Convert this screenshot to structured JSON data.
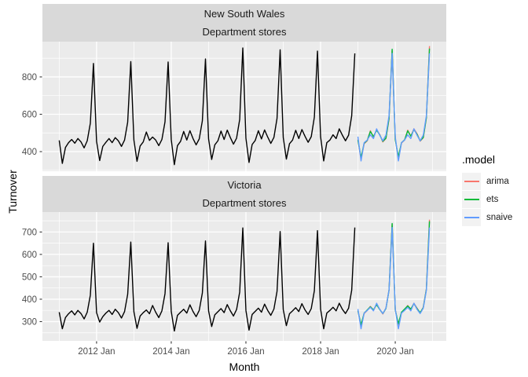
{
  "y_axis": {
    "title": "Turnover"
  },
  "x_axis": {
    "title": "Month",
    "index_unit": "month (0 = 2011 Jan)",
    "tick_indices": [
      12,
      36,
      60,
      84,
      108
    ],
    "tick_labels": [
      "2012 Jan",
      "2014 Jan",
      "2016 Jan",
      "2018 Jan",
      "2020 Jan"
    ],
    "minor_tick_indices": [
      0,
      24,
      48,
      72,
      96,
      120
    ]
  },
  "legend": {
    "title": ".model",
    "items": [
      {
        "label": "arima",
        "color": "#F8766D"
      },
      {
        "label": "ets",
        "color": "#00BA38"
      },
      {
        "label": "snaive",
        "color": "#619CFF"
      }
    ]
  },
  "colors": {
    "panel_bg": "#EBEBEB",
    "strip_bg": "#D9D9D9",
    "grid": "#FFFFFF",
    "tick": "#333333",
    "tick_label": "#4D4D4D",
    "strip_text": "#1A1A1A",
    "legend_key_bg": "#F2F2F2",
    "historical_line": "#000000"
  },
  "chart_data": [
    {
      "type": "line",
      "facet_state": "New South Wales",
      "facet_industry": "Department stores",
      "yticks": [
        400,
        600,
        800
      ],
      "yticks_minor": [
        300,
        500,
        700,
        900
      ],
      "ylim": [
        295,
        989
      ],
      "x_index_lim": [
        -5.4,
        124.4
      ],
      "series": [
        {
          "name": "historical",
          "color": "#000000",
          "start_index": 0,
          "values": [
            460,
            337,
            422,
            448,
            465,
            445,
            470,
            452,
            420,
            458,
            552,
            872,
            455,
            352,
            428,
            450,
            470,
            448,
            475,
            458,
            428,
            462,
            558,
            882,
            462,
            348,
            430,
            452,
            505,
            460,
            478,
            462,
            432,
            465,
            560,
            880,
            465,
            330,
            432,
            455,
            508,
            462,
            512,
            470,
            436,
            468,
            565,
            896,
            468,
            358,
            436,
            458,
            510,
            465,
            515,
            475,
            440,
            472,
            572,
            955,
            472,
            342,
            438,
            460,
            512,
            468,
            516,
            478,
            444,
            476,
            578,
            945,
            476,
            360,
            442,
            462,
            514,
            470,
            518,
            482,
            450,
            480,
            585,
            938,
            480,
            350,
            448,
            462,
            490,
            470,
            522,
            488,
            458,
            488,
            592,
            926
          ]
        },
        {
          "name": "arima",
          "color": "#F8766D",
          "start_index": 96,
          "values": [
            465,
            358,
            442,
            458,
            512,
            478,
            518,
            492,
            452,
            470,
            575,
            942,
            468,
            362,
            446,
            462,
            515,
            482,
            522,
            496,
            456,
            474,
            580,
            965
          ]
        },
        {
          "name": "ets",
          "color": "#00BA38",
          "start_index": 96,
          "values": [
            462,
            368,
            445,
            460,
            508,
            480,
            515,
            490,
            455,
            472,
            578,
            948,
            465,
            372,
            448,
            463,
            511,
            483,
            518,
            493,
            458,
            476,
            582,
            952
          ]
        },
        {
          "name": "snaive",
          "color": "#619CFF",
          "start_index": 96,
          "values": [
            480,
            350,
            448,
            462,
            490,
            470,
            522,
            488,
            458,
            488,
            592,
            926,
            480,
            350,
            448,
            462,
            490,
            470,
            522,
            488,
            458,
            488,
            592,
            926
          ]
        }
      ]
    },
    {
      "type": "line",
      "facet_state": "Victoria",
      "facet_industry": "Department stores",
      "yticks": [
        300,
        400,
        500,
        600,
        700
      ],
      "yticks_minor": [
        250,
        350,
        450,
        550,
        650,
        750
      ],
      "ylim": [
        214,
        789
      ],
      "x_index_lim": [
        -5.4,
        124.4
      ],
      "series": [
        {
          "name": "historical",
          "color": "#000000",
          "start_index": 0,
          "values": [
            342,
            268,
            318,
            335,
            348,
            330,
            350,
            336,
            312,
            342,
            418,
            650,
            340,
            298,
            322,
            338,
            350,
            332,
            355,
            340,
            316,
            345,
            422,
            655,
            344,
            270,
            325,
            340,
            352,
            335,
            372,
            342,
            318,
            348,
            425,
            652,
            346,
            258,
            328,
            342,
            355,
            338,
            375,
            345,
            322,
            350,
            428,
            660,
            348,
            278,
            330,
            344,
            358,
            340,
            376,
            348,
            325,
            354,
            432,
            718,
            350,
            262,
            332,
            346,
            360,
            342,
            378,
            350,
            328,
            356,
            435,
            702,
            354,
            282,
            335,
            348,
            362,
            345,
            380,
            352,
            332,
            358,
            438,
            706,
            356,
            268,
            338,
            350,
            364,
            348,
            382,
            355,
            336,
            360,
            440,
            720
          ]
        },
        {
          "name": "arima",
          "color": "#F8766D",
          "start_index": 96,
          "values": [
            350,
            280,
            336,
            350,
            368,
            350,
            378,
            356,
            334,
            360,
            442,
            735,
            354,
            284,
            340,
            354,
            372,
            354,
            382,
            360,
            338,
            364,
            446,
            755
          ]
        },
        {
          "name": "ets",
          "color": "#00BA38",
          "start_index": 96,
          "values": [
            348,
            286,
            338,
            352,
            366,
            352,
            376,
            354,
            336,
            358,
            440,
            738,
            352,
            290,
            342,
            356,
            370,
            356,
            380,
            358,
            340,
            362,
            444,
            748
          ]
        },
        {
          "name": "snaive",
          "color": "#619CFF",
          "start_index": 96,
          "values": [
            356,
            268,
            338,
            350,
            364,
            348,
            382,
            355,
            336,
            360,
            440,
            720,
            356,
            268,
            338,
            350,
            364,
            348,
            382,
            355,
            336,
            360,
            440,
            720
          ]
        }
      ]
    }
  ]
}
